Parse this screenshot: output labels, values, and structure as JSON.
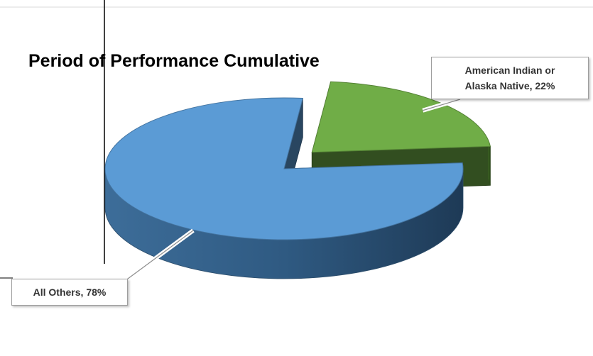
{
  "chart_data": {
    "type": "pie",
    "style": "3d-exploded",
    "title": "Period of Performance Cumulative",
    "slices": [
      {
        "label": "American Indian or Alaska Native",
        "label_lines": [
          "American Indian or",
          "Alaska Native, 22%"
        ],
        "value": 22,
        "display": "22%",
        "color": "#70ad47",
        "exploded": true
      },
      {
        "label": "All Others",
        "label_lines": [
          "All Others, 78%"
        ],
        "value": 78,
        "display": "78%",
        "color": "#5b9bd5",
        "exploded": false
      }
    ],
    "legend": "none",
    "grid": false
  }
}
